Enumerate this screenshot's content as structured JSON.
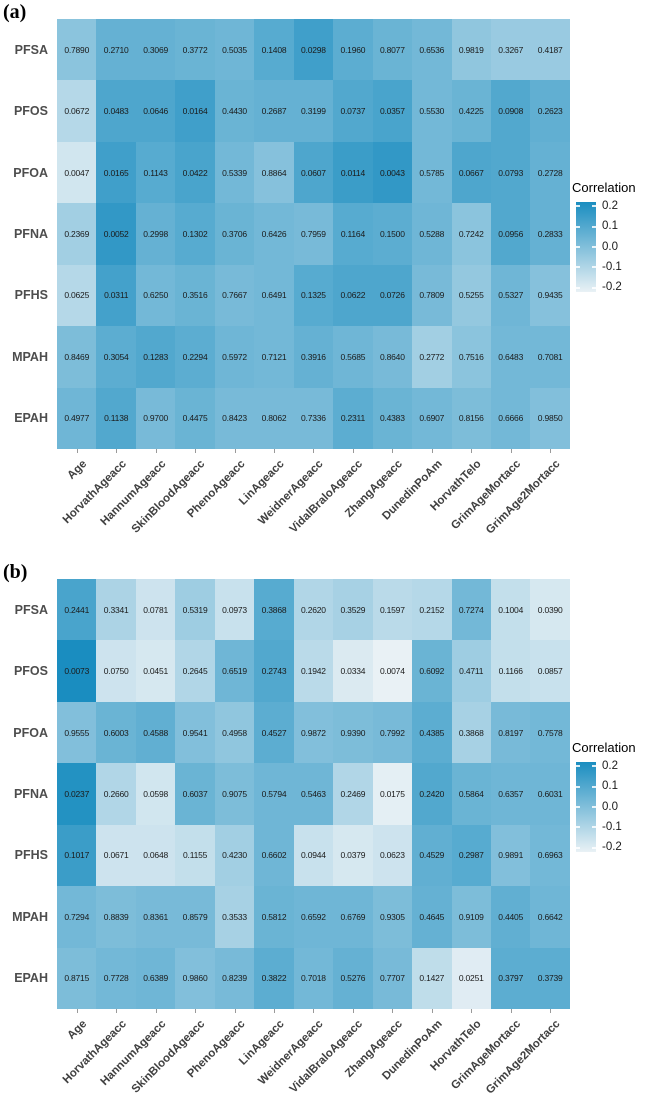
{
  "figure": {
    "panel_a_label": "(a)",
    "panel_b_label": "(b)"
  },
  "chart_data": {
    "type": "heatmap",
    "columns": [
      "Age",
      "HorvathAgeacc",
      "HannumAgeacc",
      "SkinBloodAgeacc",
      "PhenoAgeacc",
      "LinAgeacc",
      "WeidnerAgeacc",
      "VidalBraloAgeacc",
      "ZhangAgeacc",
      "DunedinPoAm",
      "HorvathTelo",
      "GrimAgeMortacc",
      "GrimAge2Mortacc"
    ],
    "rows": [
      "PFSA",
      "PFOS",
      "PFOA",
      "PFNA",
      "PFHS",
      "MPAH",
      "EPAH"
    ],
    "legend": {
      "title": "Correlation",
      "ticks": [
        "0.2",
        "0.1",
        "0.0",
        "-0.1",
        "-0.2"
      ],
      "tick_values": [
        0.2,
        0.1,
        0.0,
        -0.1,
        -0.2
      ],
      "scale": {
        "min": -0.22,
        "max": 0.22,
        "low_color": "#e9f1f5",
        "high_color": "#1a8dc0"
      }
    },
    "panels": [
      {
        "label": "(a)",
        "cell_values": [
          [
            "0.7890",
            "0.2710",
            "0.3069",
            "0.3772",
            "0.5035",
            "0.1408",
            "0.0298",
            "0.1960",
            "0.8077",
            "0.6536",
            "0.9819",
            "0.3267",
            "0.4187"
          ],
          [
            "0.0672",
            "0.0483",
            "0.0646",
            "0.0164",
            "0.4430",
            "0.2687",
            "0.3199",
            "0.0737",
            "0.0357",
            "0.5530",
            "0.4225",
            "0.0908",
            "0.2623"
          ],
          [
            "0.0047",
            "0.0165",
            "0.1143",
            "0.0422",
            "0.5339",
            "0.8864",
            "0.0607",
            "0.0114",
            "0.0043",
            "0.5785",
            "0.0667",
            "0.0793",
            "0.2728"
          ],
          [
            "0.2369",
            "0.0052",
            "0.2998",
            "0.1302",
            "0.3706",
            "0.6426",
            "0.7959",
            "0.1164",
            "0.1500",
            "0.5288",
            "0.7242",
            "0.0956",
            "0.2833"
          ],
          [
            "0.0625",
            "0.0311",
            "0.6250",
            "0.3516",
            "0.7667",
            "0.6491",
            "0.1325",
            "0.0622",
            "0.0726",
            "0.7809",
            "0.5255",
            "0.5327",
            "0.9435"
          ],
          [
            "0.8469",
            "0.3054",
            "0.1283",
            "0.2294",
            "0.5972",
            "0.7121",
            "0.3916",
            "0.5685",
            "0.8640",
            "0.2772",
            "0.7516",
            "0.6483",
            "0.7081"
          ],
          [
            "0.4977",
            "0.1138",
            "0.9700",
            "0.4475",
            "0.8423",
            "0.8062",
            "0.7336",
            "0.2311",
            "0.4383",
            "0.6907",
            "0.8156",
            "0.6666",
            "0.9850"
          ]
        ],
        "correlation_estimates": [
          [
            -0.02,
            0.06,
            0.06,
            0.05,
            0.04,
            0.09,
            0.14,
            0.08,
            0.05,
            0.03,
            -0.03,
            -0.05,
            -0.05
          ],
          [
            -0.11,
            0.11,
            0.11,
            0.14,
            0.05,
            0.06,
            0.06,
            0.1,
            0.12,
            0.03,
            0.05,
            0.1,
            0.07
          ],
          [
            -0.17,
            0.14,
            0.09,
            0.12,
            0.03,
            -0.01,
            0.11,
            0.15,
            0.17,
            0.03,
            0.11,
            0.1,
            0.06
          ],
          [
            -0.07,
            0.17,
            0.06,
            0.09,
            0.05,
            0.03,
            0.02,
            0.09,
            0.08,
            0.04,
            -0.02,
            0.1,
            0.06
          ],
          [
            -0.11,
            0.13,
            0.03,
            0.05,
            0.02,
            0.03,
            0.09,
            0.11,
            0.11,
            0.02,
            -0.04,
            0.04,
            -0.01
          ],
          [
            0.01,
            0.08,
            0.1,
            0.08,
            0.04,
            0.03,
            0.06,
            0.04,
            0.02,
            -0.07,
            -0.02,
            0.03,
            0.03
          ],
          [
            0.04,
            0.1,
            0.02,
            0.05,
            0.02,
            0.02,
            0.02,
            0.08,
            0.05,
            0.03,
            0.01,
            0.03,
            0.0
          ]
        ]
      },
      {
        "label": "(b)",
        "cell_values": [
          [
            "0.2441",
            "0.3341",
            "0.0781",
            "0.5319",
            "0.0973",
            "0.3868",
            "0.2620",
            "0.3529",
            "0.1597",
            "0.2152",
            "0.7274",
            "0.1004",
            "0.0390"
          ],
          [
            "0.0073",
            "0.0750",
            "0.0451",
            "0.2645",
            "0.6519",
            "0.2743",
            "0.1942",
            "0.0334",
            "0.0074",
            "0.6092",
            "0.4711",
            "0.1166",
            "0.0857"
          ],
          [
            "0.9555",
            "0.6003",
            "0.4588",
            "0.9541",
            "0.4958",
            "0.4527",
            "0.9872",
            "0.9390",
            "0.7992",
            "0.4385",
            "0.3868",
            "0.8197",
            "0.7578"
          ],
          [
            "0.0237",
            "0.2660",
            "0.0598",
            "0.6037",
            "0.9075",
            "0.5794",
            "0.5463",
            "0.2469",
            "0.0175",
            "0.2420",
            "0.5864",
            "0.6357",
            "0.6031"
          ],
          [
            "0.1017",
            "0.0671",
            "0.0648",
            "0.1155",
            "0.4230",
            "0.6602",
            "0.0944",
            "0.0379",
            "0.0623",
            "0.4529",
            "0.2987",
            "0.9891",
            "0.6963"
          ],
          [
            "0.7294",
            "0.8839",
            "0.8361",
            "0.8579",
            "0.3533",
            "0.5812",
            "0.6592",
            "0.6769",
            "0.9305",
            "0.4645",
            "0.9109",
            "0.4405",
            "0.6642"
          ],
          [
            "0.8715",
            "0.7728",
            "0.6389",
            "0.9860",
            "0.8239",
            "0.3822",
            "0.7018",
            "0.5276",
            "0.7707",
            "0.1427",
            "0.0251",
            "0.3797",
            "0.3739"
          ]
        ],
        "correlation_estimates": [
          [
            0.12,
            -0.09,
            -0.16,
            -0.06,
            -0.15,
            0.09,
            -0.1,
            -0.08,
            -0.12,
            -0.11,
            0.03,
            -0.14,
            -0.18
          ],
          [
            0.22,
            -0.16,
            -0.18,
            -0.1,
            0.04,
            0.1,
            -0.12,
            -0.19,
            -0.22,
            0.05,
            -0.06,
            -0.14,
            -0.15
          ],
          [
            0.0,
            0.05,
            0.07,
            0.0,
            -0.03,
            0.08,
            0.0,
            0.01,
            0.02,
            0.08,
            -0.08,
            0.02,
            0.03
          ],
          [
            0.2,
            -0.1,
            -0.17,
            0.05,
            0.01,
            0.04,
            0.04,
            -0.1,
            -0.21,
            0.1,
            0.05,
            0.04,
            0.04
          ],
          [
            0.15,
            -0.16,
            -0.16,
            -0.14,
            -0.07,
            0.04,
            -0.15,
            -0.18,
            -0.16,
            0.07,
            0.09,
            0.0,
            0.03
          ],
          [
            0.03,
            0.01,
            0.02,
            0.02,
            -0.08,
            0.05,
            0.04,
            0.04,
            0.01,
            0.06,
            0.01,
            0.07,
            0.04
          ],
          [
            0.01,
            0.03,
            0.04,
            0.0,
            0.02,
            0.08,
            0.03,
            0.06,
            0.02,
            -0.13,
            -0.2,
            0.08,
            0.08
          ]
        ]
      }
    ]
  }
}
